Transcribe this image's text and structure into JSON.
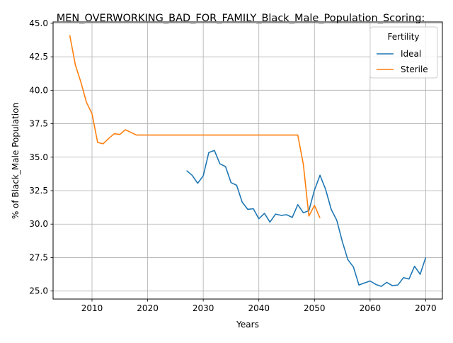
{
  "chart_data": {
    "type": "line",
    "title": "MEN_OVERWORKING_BAD_FOR_FAMILY_Black_Male_Population_Scoring:",
    "xlabel": "Years",
    "ylabel": "% of Black_Male Population",
    "xlim": [
      2003,
      2073
    ],
    "ylim": [
      24.4,
      45.1
    ],
    "x_ticks": [
      2010,
      2020,
      2030,
      2040,
      2050,
      2060,
      2070
    ],
    "y_ticks": [
      25.0,
      27.5,
      30.0,
      32.5,
      35.0,
      37.5,
      40.0,
      42.5,
      45.0
    ],
    "x_tick_labels": [
      "2010",
      "2020",
      "2030",
      "2040",
      "2050",
      "2060",
      "2070"
    ],
    "y_tick_labels": [
      "25.0",
      "27.5",
      "30.0",
      "32.5",
      "35.0",
      "37.5",
      "40.0",
      "42.5",
      "45.0"
    ],
    "grid": true,
    "legend": {
      "title": "Fertility",
      "placement": "top-right"
    },
    "series": [
      {
        "name": "Ideal",
        "color": "#1f77b4",
        "x": [
          2027,
          2028,
          2029,
          2030,
          2031,
          2032,
          2033,
          2034,
          2035,
          2036,
          2037,
          2038,
          2039,
          2040,
          2041,
          2042,
          2043,
          2044,
          2045,
          2046,
          2047,
          2048,
          2049,
          2050,
          2051,
          2052,
          2053,
          2054,
          2055,
          2056,
          2057,
          2058,
          2059,
          2060,
          2061,
          2062,
          2063,
          2064,
          2065,
          2066,
          2067,
          2068,
          2069,
          2070
        ],
        "y": [
          34.0,
          33.65,
          33.05,
          33.6,
          35.35,
          35.5,
          34.5,
          34.3,
          33.1,
          32.9,
          31.65,
          31.1,
          31.15,
          30.4,
          30.8,
          30.15,
          30.75,
          30.65,
          30.7,
          30.5,
          31.45,
          30.85,
          31.0,
          32.55,
          33.65,
          32.6,
          31.1,
          30.3,
          28.7,
          27.35,
          26.8,
          25.45,
          25.6,
          25.75,
          25.5,
          25.35,
          25.65,
          25.4,
          25.45,
          26.0,
          25.9,
          26.85,
          26.25,
          27.5
        ]
      },
      {
        "name": "Sterile",
        "color": "#ff7f0e",
        "x": [
          2006,
          2007,
          2008,
          2009,
          2010,
          2011,
          2012,
          2013,
          2014,
          2015,
          2016,
          2017,
          2018,
          2019,
          2020,
          2021,
          2022,
          2023,
          2024,
          2025,
          2026,
          2027,
          2028,
          2029,
          2030,
          2031,
          2032,
          2033,
          2034,
          2035,
          2036,
          2037,
          2038,
          2039,
          2040,
          2041,
          2042,
          2043,
          2044,
          2045,
          2046,
          2047,
          2048,
          2049,
          2050,
          2051
        ],
        "y": [
          44.1,
          41.9,
          40.6,
          39.1,
          38.25,
          36.1,
          36.0,
          36.4,
          36.75,
          36.7,
          37.05,
          36.85,
          36.65,
          36.65,
          36.65,
          36.65,
          36.65,
          36.65,
          36.65,
          36.65,
          36.65,
          36.65,
          36.65,
          36.65,
          36.65,
          36.65,
          36.65,
          36.65,
          36.65,
          36.65,
          36.65,
          36.65,
          36.65,
          36.65,
          36.65,
          36.65,
          36.65,
          36.65,
          36.65,
          36.65,
          36.65,
          36.65,
          34.45,
          30.6,
          31.4,
          30.45
        ]
      }
    ]
  }
}
